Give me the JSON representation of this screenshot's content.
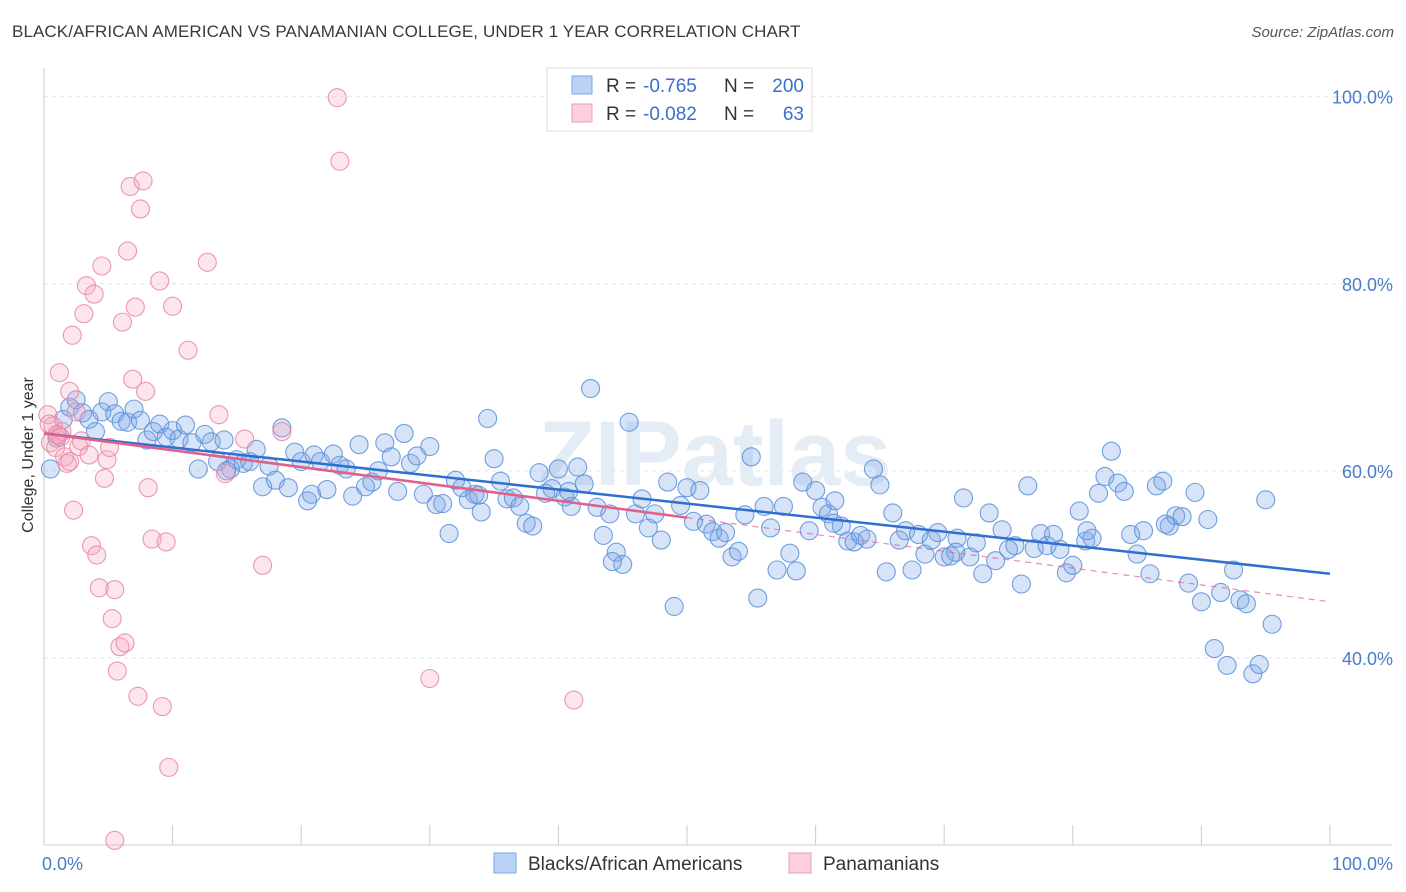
{
  "title": "BLACK/AFRICAN AMERICAN VS PANAMANIAN COLLEGE, UNDER 1 YEAR CORRELATION CHART",
  "source": "Source: ZipAtlas.com",
  "watermark": "ZIPatlas",
  "chart_data": {
    "type": "scatter",
    "xlabel": "",
    "ylabel": "College, Under 1 year",
    "xlim": [
      0,
      100
    ],
    "ylim": [
      20,
      102
    ],
    "x_tick_labels": [
      {
        "value": 0,
        "label": "0.0%"
      },
      {
        "value": 100,
        "label": "100.0%"
      }
    ],
    "y_tick_labels": [
      {
        "value": 100,
        "label": "100.0%"
      },
      {
        "value": 80,
        "label": "80.0%"
      },
      {
        "value": 60,
        "label": "60.0%"
      },
      {
        "value": 40,
        "label": "40.0%"
      }
    ],
    "legend": {
      "rows": [
        {
          "r_label": "R =",
          "r_value": "-0.765",
          "n_label": "N =",
          "n_value": "200",
          "color": "#7ba7e8"
        },
        {
          "r_label": "R =",
          "r_value": "-0.082",
          "n_label": "N =",
          "n_value": "63",
          "color": "#f09ab5"
        }
      ]
    },
    "series": [
      {
        "name": "Blacks/African Americans",
        "color": "#7ba7e8",
        "stroke": "#5b8fd9",
        "trend": {
          "x": [
            0,
            100
          ],
          "y": [
            64.0,
            49.0
          ]
        },
        "points": [
          [
            0.5,
            60.2
          ],
          [
            1,
            63.5
          ],
          [
            1.5,
            65.5
          ],
          [
            2,
            66.8
          ],
          [
            2.5,
            67.6
          ],
          [
            3,
            66.2
          ],
          [
            3.5,
            65.5
          ],
          [
            4,
            64.2
          ],
          [
            4.5,
            66.3
          ],
          [
            5,
            67.4
          ],
          [
            5.5,
            66.1
          ],
          [
            6,
            65.3
          ],
          [
            6.5,
            65.2
          ],
          [
            7,
            66.6
          ],
          [
            7.5,
            65.4
          ],
          [
            8,
            63.3
          ],
          [
            8.5,
            64.2
          ],
          [
            9,
            65.0
          ],
          [
            9.5,
            63.6
          ],
          [
            10,
            64.3
          ],
          [
            10.5,
            63.4
          ],
          [
            11,
            64.9
          ],
          [
            11.5,
            63.0
          ],
          [
            12,
            60.2
          ],
          [
            12.5,
            63.9
          ],
          [
            13,
            63.1
          ],
          [
            13.5,
            61.0
          ],
          [
            14,
            63.3
          ],
          [
            14.5,
            60.2
          ],
          [
            15,
            61.2
          ],
          [
            15.5,
            60.8
          ],
          [
            16,
            61.0
          ],
          [
            16.5,
            62.3
          ],
          [
            17,
            58.3
          ],
          [
            17.5,
            60.5
          ],
          [
            18,
            59.0
          ],
          [
            18.5,
            64.6
          ],
          [
            19,
            58.2
          ],
          [
            19.5,
            62.0
          ],
          [
            20,
            61.0
          ],
          [
            20.5,
            56.8
          ],
          [
            21,
            61.7
          ],
          [
            21.5,
            61.0
          ],
          [
            22,
            58.0
          ],
          [
            22.5,
            61.8
          ],
          [
            23,
            60.6
          ],
          [
            23.5,
            60.2
          ],
          [
            24,
            57.3
          ],
          [
            24.5,
            62.8
          ],
          [
            25,
            58.3
          ],
          [
            25.5,
            58.8
          ],
          [
            26,
            60.0
          ],
          [
            26.5,
            63.0
          ],
          [
            27,
            61.5
          ],
          [
            27.5,
            57.8
          ],
          [
            28,
            64.0
          ],
          [
            28.5,
            60.8
          ],
          [
            29,
            61.6
          ],
          [
            29.5,
            57.5
          ],
          [
            30,
            62.6
          ],
          [
            30.5,
            56.4
          ],
          [
            31,
            56.5
          ],
          [
            31.5,
            53.3
          ],
          [
            32,
            59.0
          ],
          [
            32.5,
            58.2
          ],
          [
            33,
            56.9
          ],
          [
            33.5,
            57.5
          ],
          [
            34,
            55.6
          ],
          [
            34.5,
            65.6
          ],
          [
            35,
            61.3
          ],
          [
            35.5,
            58.9
          ],
          [
            36,
            57.0
          ],
          [
            36.5,
            57.1
          ],
          [
            37,
            56.2
          ],
          [
            37.5,
            54.4
          ],
          [
            38,
            54.1
          ],
          [
            38.5,
            59.8
          ],
          [
            39,
            57.6
          ],
          [
            39.5,
            58.1
          ],
          [
            40,
            60.2
          ],
          [
            40.5,
            57.2
          ],
          [
            41,
            56.2
          ],
          [
            41.5,
            60.4
          ],
          [
            42,
            58.6
          ],
          [
            42.5,
            68.8
          ],
          [
            43,
            56.1
          ],
          [
            43.5,
            53.1
          ],
          [
            44,
            55.4
          ],
          [
            44.5,
            51.3
          ],
          [
            45,
            50.0
          ],
          [
            45.5,
            65.2
          ],
          [
            46,
            55.4
          ],
          [
            46.5,
            57.0
          ],
          [
            47,
            53.9
          ],
          [
            47.5,
            55.4
          ],
          [
            48,
            52.6
          ],
          [
            48.5,
            58.8
          ],
          [
            49,
            45.5
          ],
          [
            49.5,
            56.3
          ],
          [
            50,
            58.2
          ],
          [
            50.5,
            54.6
          ],
          [
            51,
            57.9
          ],
          [
            51.5,
            54.3
          ],
          [
            52,
            53.5
          ],
          [
            52.5,
            52.8
          ],
          [
            53,
            53.4
          ],
          [
            53.5,
            50.8
          ],
          [
            54,
            51.4
          ],
          [
            54.5,
            55.3
          ],
          [
            55,
            61.5
          ],
          [
            55.5,
            46.4
          ],
          [
            56,
            56.2
          ],
          [
            56.5,
            53.9
          ],
          [
            57,
            49.4
          ],
          [
            57.5,
            56.2
          ],
          [
            58,
            51.2
          ],
          [
            58.5,
            49.3
          ],
          [
            59,
            58.8
          ],
          [
            59.5,
            53.6
          ],
          [
            60,
            57.9
          ],
          [
            60.5,
            56.1
          ],
          [
            61,
            55.4
          ],
          [
            61.5,
            56.8
          ],
          [
            62,
            54.1
          ],
          [
            62.5,
            52.5
          ],
          [
            63,
            52.4
          ],
          [
            63.5,
            53.1
          ],
          [
            64,
            52.7
          ],
          [
            64.5,
            60.2
          ],
          [
            65,
            58.5
          ],
          [
            65.5,
            49.2
          ],
          [
            66,
            55.5
          ],
          [
            66.5,
            52.6
          ],
          [
            67,
            53.6
          ],
          [
            67.5,
            49.4
          ],
          [
            68,
            53.2
          ],
          [
            68.5,
            51.1
          ],
          [
            69,
            52.6
          ],
          [
            69.5,
            53.4
          ],
          [
            70,
            50.8
          ],
          [
            70.5,
            50.9
          ],
          [
            71,
            52.8
          ],
          [
            71.5,
            57.1
          ],
          [
            72,
            50.8
          ],
          [
            72.5,
            52.3
          ],
          [
            73,
            49.0
          ],
          [
            73.5,
            55.5
          ],
          [
            74,
            50.4
          ],
          [
            74.5,
            53.7
          ],
          [
            75,
            51.6
          ],
          [
            75.5,
            52.0
          ],
          [
            76,
            47.9
          ],
          [
            76.5,
            58.4
          ],
          [
            77,
            51.7
          ],
          [
            77.5,
            53.3
          ],
          [
            78,
            52.0
          ],
          [
            78.5,
            53.2
          ],
          [
            79,
            51.6
          ],
          [
            79.5,
            49.1
          ],
          [
            80,
            49.9
          ],
          [
            80.5,
            55.7
          ],
          [
            81,
            52.5
          ],
          [
            81.5,
            52.8
          ],
          [
            82,
            57.6
          ],
          [
            82.5,
            59.4
          ],
          [
            83,
            62.1
          ],
          [
            83.5,
            58.7
          ],
          [
            84,
            57.8
          ],
          [
            84.5,
            53.2
          ],
          [
            85,
            51.1
          ],
          [
            85.5,
            53.6
          ],
          [
            86,
            49.0
          ],
          [
            86.5,
            58.4
          ],
          [
            87,
            58.9
          ],
          [
            87.5,
            54.1
          ],
          [
            88,
            55.2
          ],
          [
            88.5,
            55.1
          ],
          [
            89,
            48.0
          ],
          [
            89.5,
            57.7
          ],
          [
            90,
            46.0
          ],
          [
            90.5,
            54.8
          ],
          [
            91,
            41.0
          ],
          [
            91.5,
            47.0
          ],
          [
            92,
            39.2
          ],
          [
            92.5,
            49.4
          ],
          [
            93,
            46.2
          ],
          [
            93.5,
            45.8
          ],
          [
            94,
            38.3
          ],
          [
            94.5,
            39.3
          ],
          [
            95,
            56.9
          ],
          [
            95.5,
            43.6
          ],
          [
            20.8,
            57.5
          ],
          [
            33.8,
            57.4
          ],
          [
            14.2,
            60.0
          ],
          [
            40.8,
            57.8
          ],
          [
            44.2,
            50.3
          ],
          [
            61.4,
            54.4
          ],
          [
            70.9,
            51.3
          ],
          [
            81.1,
            53.6
          ],
          [
            87.2,
            54.3
          ]
        ]
      },
      {
        "name": "Panamanians",
        "color": "#f5a8c0",
        "stroke": "#e887a6",
        "trend": {
          "x": [
            0,
            50
          ],
          "y": [
            64.0,
            55.0
          ]
        },
        "trend_dashed": {
          "x": [
            50,
            100
          ],
          "y": [
            55.0,
            46.0
          ]
        },
        "points": [
          [
            0.3,
            66.0
          ],
          [
            0.5,
            63.0
          ],
          [
            0.7,
            64.8
          ],
          [
            0.9,
            62.5
          ],
          [
            1.1,
            63.8
          ],
          [
            1.2,
            70.5
          ],
          [
            1.4,
            64.2
          ],
          [
            1.6,
            61.5
          ],
          [
            1.8,
            60.8
          ],
          [
            2.0,
            68.5
          ],
          [
            2.2,
            74.5
          ],
          [
            2.3,
            55.8
          ],
          [
            2.5,
            66.3
          ],
          [
            2.7,
            62.6
          ],
          [
            2.9,
            63.2
          ],
          [
            3.1,
            76.8
          ],
          [
            3.3,
            79.8
          ],
          [
            3.5,
            61.7
          ],
          [
            3.7,
            52.0
          ],
          [
            3.9,
            78.9
          ],
          [
            4.1,
            51.0
          ],
          [
            4.3,
            47.5
          ],
          [
            4.5,
            81.9
          ],
          [
            4.7,
            59.2
          ],
          [
            4.9,
            61.2
          ],
          [
            5.1,
            62.5
          ],
          [
            5.3,
            44.2
          ],
          [
            5.5,
            47.3
          ],
          [
            5.7,
            38.6
          ],
          [
            5.9,
            41.2
          ],
          [
            6.1,
            75.9
          ],
          [
            6.3,
            41.6
          ],
          [
            6.5,
            83.5
          ],
          [
            6.7,
            90.4
          ],
          [
            6.9,
            69.8
          ],
          [
            7.1,
            77.5
          ],
          [
            7.3,
            35.9
          ],
          [
            7.5,
            88.0
          ],
          [
            7.7,
            91.0
          ],
          [
            7.9,
            68.5
          ],
          [
            8.1,
            58.2
          ],
          [
            8.4,
            52.7
          ],
          [
            9.0,
            80.3
          ],
          [
            9.2,
            34.8
          ],
          [
            9.5,
            52.4
          ],
          [
            9.7,
            28.3
          ],
          [
            10.0,
            77.6
          ],
          [
            11.2,
            72.9
          ],
          [
            12.7,
            82.3
          ],
          [
            13.6,
            66.0
          ],
          [
            14.1,
            59.7
          ],
          [
            15.6,
            63.4
          ],
          [
            17.0,
            49.9
          ],
          [
            18.5,
            64.2
          ],
          [
            22.8,
            99.9
          ],
          [
            23.0,
            93.1
          ],
          [
            30.0,
            37.8
          ],
          [
            41.2,
            35.5
          ],
          [
            5.5,
            20.5
          ],
          [
            0.4,
            65.0
          ],
          [
            1.0,
            63.9
          ],
          [
            1.3,
            63.6
          ],
          [
            2.0,
            61.0
          ]
        ]
      }
    ]
  },
  "bottom_legend": [
    {
      "label": "Blacks/African Americans",
      "color": "#7ba7e8"
    },
    {
      "label": "Panamanians",
      "color": "#f5a8c0"
    }
  ]
}
